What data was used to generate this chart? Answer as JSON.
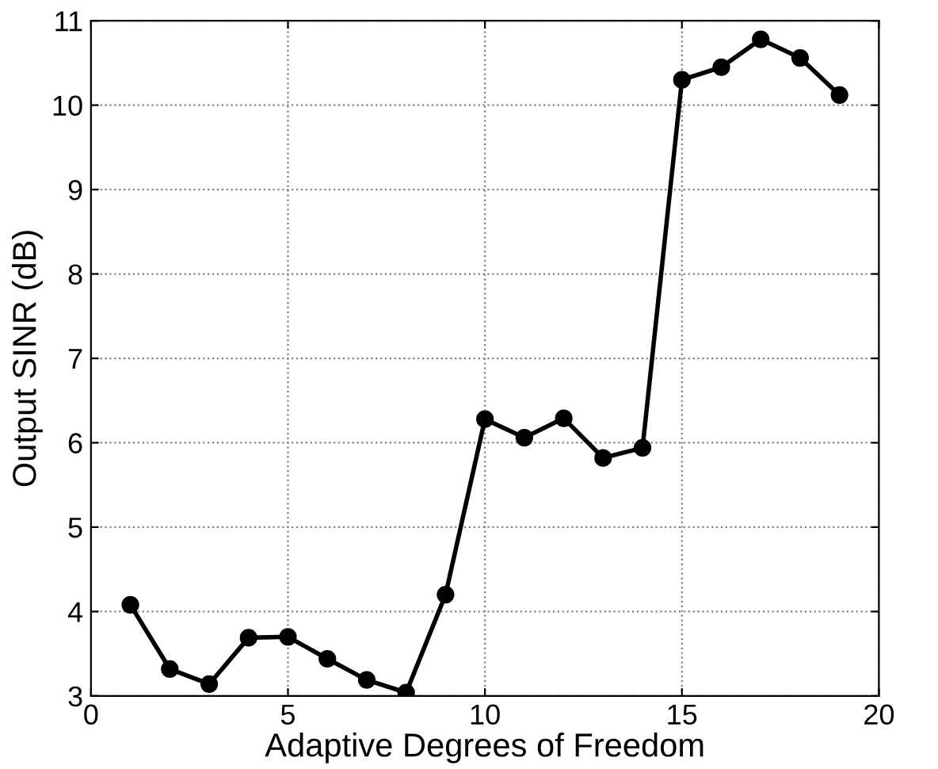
{
  "chart_data": {
    "type": "line",
    "xlabel": "Adaptive Degrees of Freedom",
    "ylabel": "Output SINR (dB)",
    "x": [
      1,
      2,
      3,
      4,
      5,
      6,
      7,
      8,
      9,
      10,
      11,
      12,
      13,
      14,
      15,
      16,
      17,
      18,
      19
    ],
    "series": [
      {
        "color": "#000000",
        "values": [
          4.08,
          3.32,
          3.14,
          3.69,
          3.7,
          3.44,
          3.19,
          3.04,
          4.2,
          6.28,
          6.06,
          6.29,
          5.82,
          5.94,
          10.3,
          10.45,
          10.78,
          10.56,
          10.12
        ]
      }
    ],
    "xlim": [
      0,
      20
    ],
    "xticks": [
      0,
      5,
      10,
      15,
      20
    ],
    "ylim": [
      3,
      11
    ],
    "yticks": [
      3,
      4,
      5,
      6,
      7,
      8,
      9,
      10,
      11
    ],
    "grid": true,
    "marker": "circle",
    "line_style": "solid",
    "legend": false
  }
}
